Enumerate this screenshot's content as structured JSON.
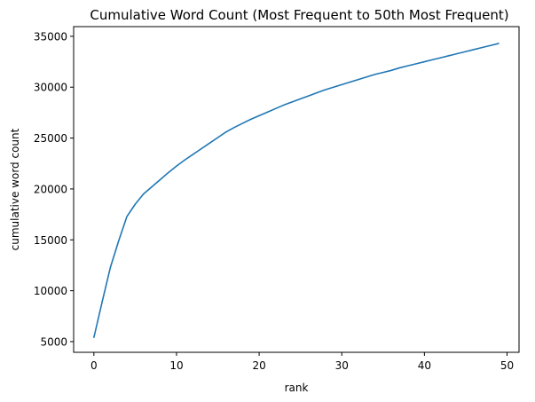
{
  "chart_data": {
    "type": "line",
    "title": "Cumulative Word Count (Most Frequent to 50th Most Frequent)",
    "xlabel": "rank",
    "ylabel": "cumulative word count",
    "xlim": [
      -2.45,
      51.45
    ],
    "ylim": [
      3950,
      35950
    ],
    "xticks": [
      0,
      10,
      20,
      30,
      40,
      50
    ],
    "yticks": [
      5000,
      10000,
      15000,
      20000,
      25000,
      30000,
      35000
    ],
    "grid": false,
    "legend": "none",
    "series": [
      {
        "color": "#1f77b4",
        "x": [
          0,
          1,
          2,
          3,
          4,
          5,
          6,
          7,
          8,
          9,
          10,
          11,
          12,
          13,
          14,
          15,
          16,
          17,
          18,
          19,
          20,
          21,
          22,
          23,
          24,
          25,
          26,
          27,
          28,
          29,
          30,
          31,
          32,
          33,
          34,
          35,
          36,
          37,
          38,
          39,
          40,
          41,
          42,
          43,
          44,
          45,
          46,
          47,
          48,
          49
        ],
        "y": [
          5400,
          8900,
          12300,
          14900,
          17300,
          18500,
          19500,
          20200,
          20900,
          21600,
          22250,
          22850,
          23400,
          23950,
          24500,
          25050,
          25600,
          26050,
          26450,
          26850,
          27200,
          27550,
          27900,
          28250,
          28550,
          28850,
          29150,
          29450,
          29750,
          30000,
          30250,
          30500,
          30750,
          31000,
          31250,
          31450,
          31650,
          31900,
          32100,
          32300,
          32500,
          32700,
          32900,
          33100,
          33300,
          33500,
          33700,
          33900,
          34100,
          34300
        ]
      }
    ]
  }
}
